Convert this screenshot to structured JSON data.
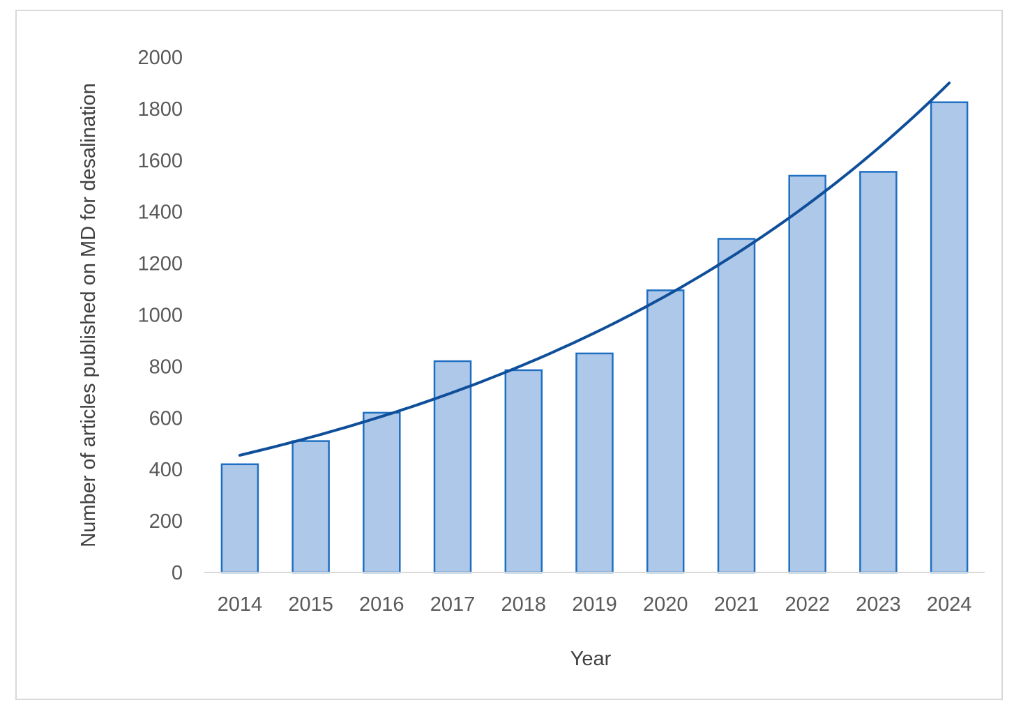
{
  "chart_data": {
    "type": "bar",
    "xlabel": "Year",
    "ylabel": "Number of articles published on MD for desalination",
    "categories": [
      "2014",
      "2015",
      "2016",
      "2017",
      "2018",
      "2019",
      "2020",
      "2021",
      "2022",
      "2023",
      "2024"
    ],
    "series": [
      {
        "values": [
          420,
          510,
          620,
          820,
          785,
          850,
          1095,
          1295,
          1540,
          1555,
          1825
        ]
      }
    ],
    "trendline": {
      "type": "exponential",
      "from_category": "2014",
      "to_category": "2024",
      "start_value": 455,
      "end_value": 1900
    },
    "ylim": [
      0,
      2000
    ],
    "yticks": [
      0,
      200,
      400,
      600,
      800,
      1000,
      1200,
      1400,
      1600,
      1800,
      2000
    ],
    "grid": false,
    "legend": "none",
    "colors": {
      "bar_fill": "#adc8e8",
      "bar_stroke": "#1e6fc2",
      "trendline": "#0f4f9a",
      "axis": "#d9d9d9",
      "frame": "#d9d9d9"
    }
  }
}
